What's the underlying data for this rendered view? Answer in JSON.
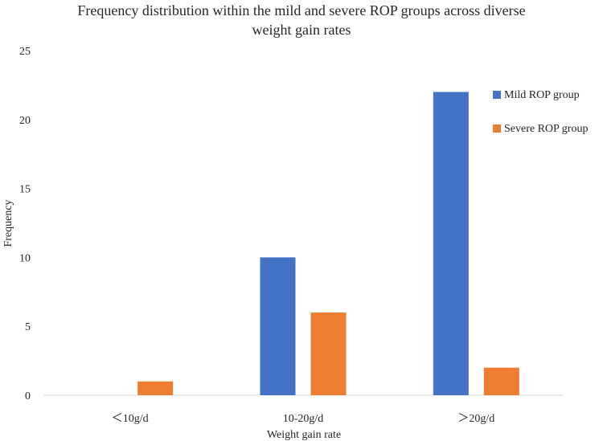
{
  "chart_data": {
    "type": "bar",
    "title_lines": [
      "Frequency distribution within the mild and severe ROP groups across diverse",
      "weight gain rates"
    ],
    "xlabel": "Weight gain rate",
    "ylabel": "Frequency",
    "categories": [
      "＜10g/d",
      "10-20g/d",
      "＞20g/d"
    ],
    "series": [
      {
        "name": "Mild ROP group",
        "color": "#4472C4",
        "values": [
          0,
          10,
          22
        ]
      },
      {
        "name": "Severe ROP group",
        "color": "#ED7D31",
        "values": [
          1,
          6,
          2
        ]
      }
    ],
    "ylim": [
      0,
      25
    ],
    "yticks": [
      0,
      5,
      10,
      15,
      20,
      25
    ],
    "legend_position": "right",
    "grid": false
  }
}
